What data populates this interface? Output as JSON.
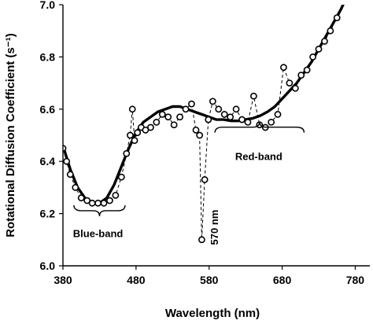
{
  "chart_data": {
    "type": "scatter",
    "title": "",
    "xlabel": "Wavelength (nm)",
    "ylabel": "Rotational Diffusion Coefficient (s⁻¹)",
    "xlim": [
      380,
      800
    ],
    "ylim": [
      6.0,
      7.0
    ],
    "xticks": [
      "380",
      "480",
      "580",
      "680",
      "780"
    ],
    "yticks": [
      "6.0",
      "6.2",
      "6.4",
      "6.6",
      "6.8",
      "7.0"
    ],
    "grid": false,
    "series": [
      {
        "style": "dashed-line-with-open-circles",
        "x": [
          380,
          385,
          390,
          397,
          405,
          413,
          420,
          428,
          436,
          444,
          452,
          460,
          467,
          472,
          475,
          478,
          482,
          487,
          493,
          500,
          508,
          516,
          524,
          532,
          540,
          548,
          556,
          562,
          567,
          570,
          574,
          579,
          585,
          593,
          601,
          609,
          617,
          625,
          633,
          641,
          649,
          657,
          665,
          674,
          682,
          690,
          698,
          706,
          714,
          722,
          730,
          738,
          746,
          755
        ],
        "y": [
          6.45,
          6.4,
          6.35,
          6.3,
          6.26,
          6.25,
          6.24,
          6.24,
          6.24,
          6.25,
          6.27,
          6.34,
          6.43,
          6.5,
          6.6,
          6.48,
          6.51,
          6.53,
          6.52,
          6.53,
          6.55,
          6.58,
          6.57,
          6.54,
          6.57,
          6.6,
          6.62,
          6.52,
          6.5,
          6.1,
          6.33,
          6.56,
          6.63,
          6.6,
          6.58,
          6.57,
          6.6,
          6.56,
          6.55,
          6.65,
          6.54,
          6.53,
          6.55,
          6.58,
          6.76,
          6.7,
          6.68,
          6.73,
          6.75,
          6.8,
          6.83,
          6.86,
          6.9,
          6.95
        ]
      },
      {
        "style": "thick-solid-fit",
        "x": [
          380,
          390,
          400,
          410,
          420,
          430,
          440,
          450,
          460,
          470,
          480,
          490,
          500,
          510,
          520,
          530,
          540,
          550,
          560,
          570,
          580,
          590,
          600,
          610,
          620,
          630,
          640,
          650,
          660,
          670,
          680,
          690,
          700,
          710,
          720,
          730,
          740,
          750,
          760,
          765
        ],
        "y": [
          6.46,
          6.37,
          6.3,
          6.26,
          6.24,
          6.24,
          6.26,
          6.31,
          6.38,
          6.45,
          6.51,
          6.55,
          6.57,
          6.59,
          6.6,
          6.61,
          6.61,
          6.6,
          6.59,
          6.58,
          6.57,
          6.56,
          6.56,
          6.555,
          6.555,
          6.56,
          6.565,
          6.575,
          6.59,
          6.61,
          6.64,
          6.67,
          6.7,
          6.74,
          6.78,
          6.83,
          6.88,
          6.93,
          6.98,
          7.01
        ]
      }
    ],
    "annotations": [
      {
        "text": "Blue-band",
        "bracket_x": [
          395,
          465
        ],
        "bracket_y": 6.235,
        "text_x": 428,
        "text_y": 6.125
      },
      {
        "text": "Red-band",
        "bracket_x": [
          588,
          710
        ],
        "bracket_y": 6.51,
        "text_x": 648,
        "text_y": 6.42
      },
      {
        "text": "570 nm",
        "text_x": 575,
        "text_y": 6.08,
        "rotated": true
      }
    ]
  }
}
